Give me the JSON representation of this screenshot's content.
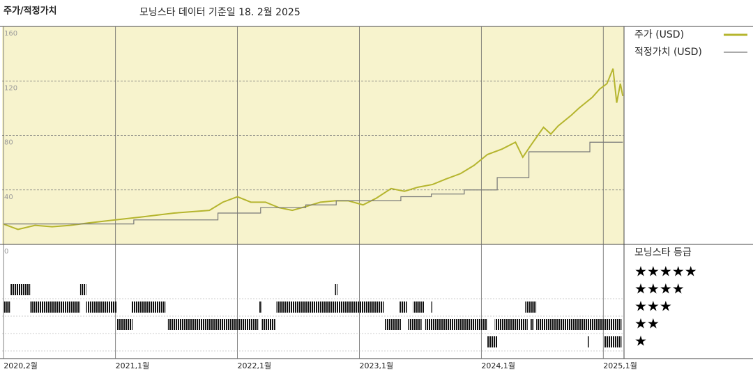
{
  "header": {
    "title": "주가/적정가치",
    "subtitle": "모닝스타 데이터 기준일 18. 2월 2025"
  },
  "chart_data": [
    {
      "type": "line",
      "background": "#f7f3cd",
      "xlim": [
        2020.07,
        2025.17
      ],
      "xticks": [
        {
          "value": 2020.083,
          "label": "2020,2월"
        },
        {
          "value": 2021,
          "label": "2021,1월"
        },
        {
          "value": 2022,
          "label": "2022,1월"
        },
        {
          "value": 2023,
          "label": "2023,1월"
        },
        {
          "value": 2024,
          "label": "2024,1월"
        },
        {
          "value": 2025,
          "label": "2025,1월"
        }
      ],
      "ylim": [
        0,
        160
      ],
      "yticks": [
        0,
        40,
        80,
        120,
        160
      ],
      "grid": true,
      "series": [
        {
          "name": "주가 (USD)",
          "color": "#b5b52e",
          "shape": "linear",
          "x": [
            2020.08,
            2020.2,
            2020.34,
            2020.48,
            2020.63,
            2020.8,
            2021.0,
            2021.2,
            2021.48,
            2021.77,
            2021.88,
            2022.0,
            2022.11,
            2022.23,
            2022.34,
            2022.45,
            2022.57,
            2022.68,
            2022.8,
            2022.91,
            2023.03,
            2023.14,
            2023.26,
            2023.37,
            2023.48,
            2023.6,
            2023.71,
            2023.83,
            2023.94,
            2024.05,
            2024.17,
            2024.28,
            2024.34,
            2024.4,
            2024.51,
            2024.57,
            2024.63,
            2024.74,
            2024.8,
            2024.91,
            2024.97,
            2025.03,
            2025.08,
            2025.11,
            2025.14,
            2025.16
          ],
          "values": [
            15,
            11,
            14,
            13,
            14,
            16,
            18,
            20,
            23,
            25,
            31,
            35,
            31,
            31,
            27,
            25,
            28,
            31,
            32,
            32,
            29,
            34,
            41,
            39,
            42,
            44,
            48,
            52,
            58,
            66,
            70,
            75,
            64,
            72,
            86,
            81,
            87,
            95,
            100,
            108,
            114,
            118,
            129,
            104,
            118,
            109
          ]
        },
        {
          "name": "적정가치 (USD)",
          "color": "#777777",
          "shape": "step",
          "x": [
            2020.08,
            2021.15,
            2021.84,
            2022.19,
            2022.56,
            2022.81,
            2023.34,
            2023.59,
            2023.86,
            2024.13,
            2024.39,
            2024.89,
            2025.16
          ],
          "values": [
            15,
            18,
            23,
            27,
            29,
            32,
            35,
            37,
            40,
            49,
            68,
            75,
            75
          ]
        }
      ]
    },
    {
      "type": "rating",
      "title": "모닝스타 등급",
      "color": "#111111",
      "categories": [
        "★★★★★",
        "★★★★",
        "★★★",
        "★★",
        "★"
      ],
      "segments": {
        "start": [
          2020.14,
          2020.71,
          2022.8,
          2020.08,
          2020.3,
          2020.76,
          2021.13,
          2022.18,
          2022.32,
          2023.33,
          2023.44,
          2023.59,
          2024.36,
          2021.01,
          2021.43,
          2022.2,
          2023.21,
          2023.4,
          2023.54,
          2024.11,
          2024.4,
          2024.45,
          2024.05,
          2024.87,
          2025.01
        ],
        "end": [
          2020.3,
          2020.76,
          2022.82,
          2020.14,
          2020.71,
          2021.01,
          2021.41,
          2022.2,
          2023.2,
          2023.39,
          2023.53,
          2023.6,
          2024.45,
          2021.14,
          2022.17,
          2022.31,
          2023.34,
          2023.51,
          2024.05,
          2024.38,
          2024.43,
          2025.15,
          2024.13,
          2024.88,
          2025.15
        ],
        "values": [
          4,
          4,
          4,
          3,
          3,
          3,
          3,
          3,
          3,
          3,
          3,
          3,
          3,
          2,
          2,
          2,
          2,
          2,
          2,
          2,
          2,
          2,
          1,
          1,
          1
        ]
      }
    }
  ]
}
